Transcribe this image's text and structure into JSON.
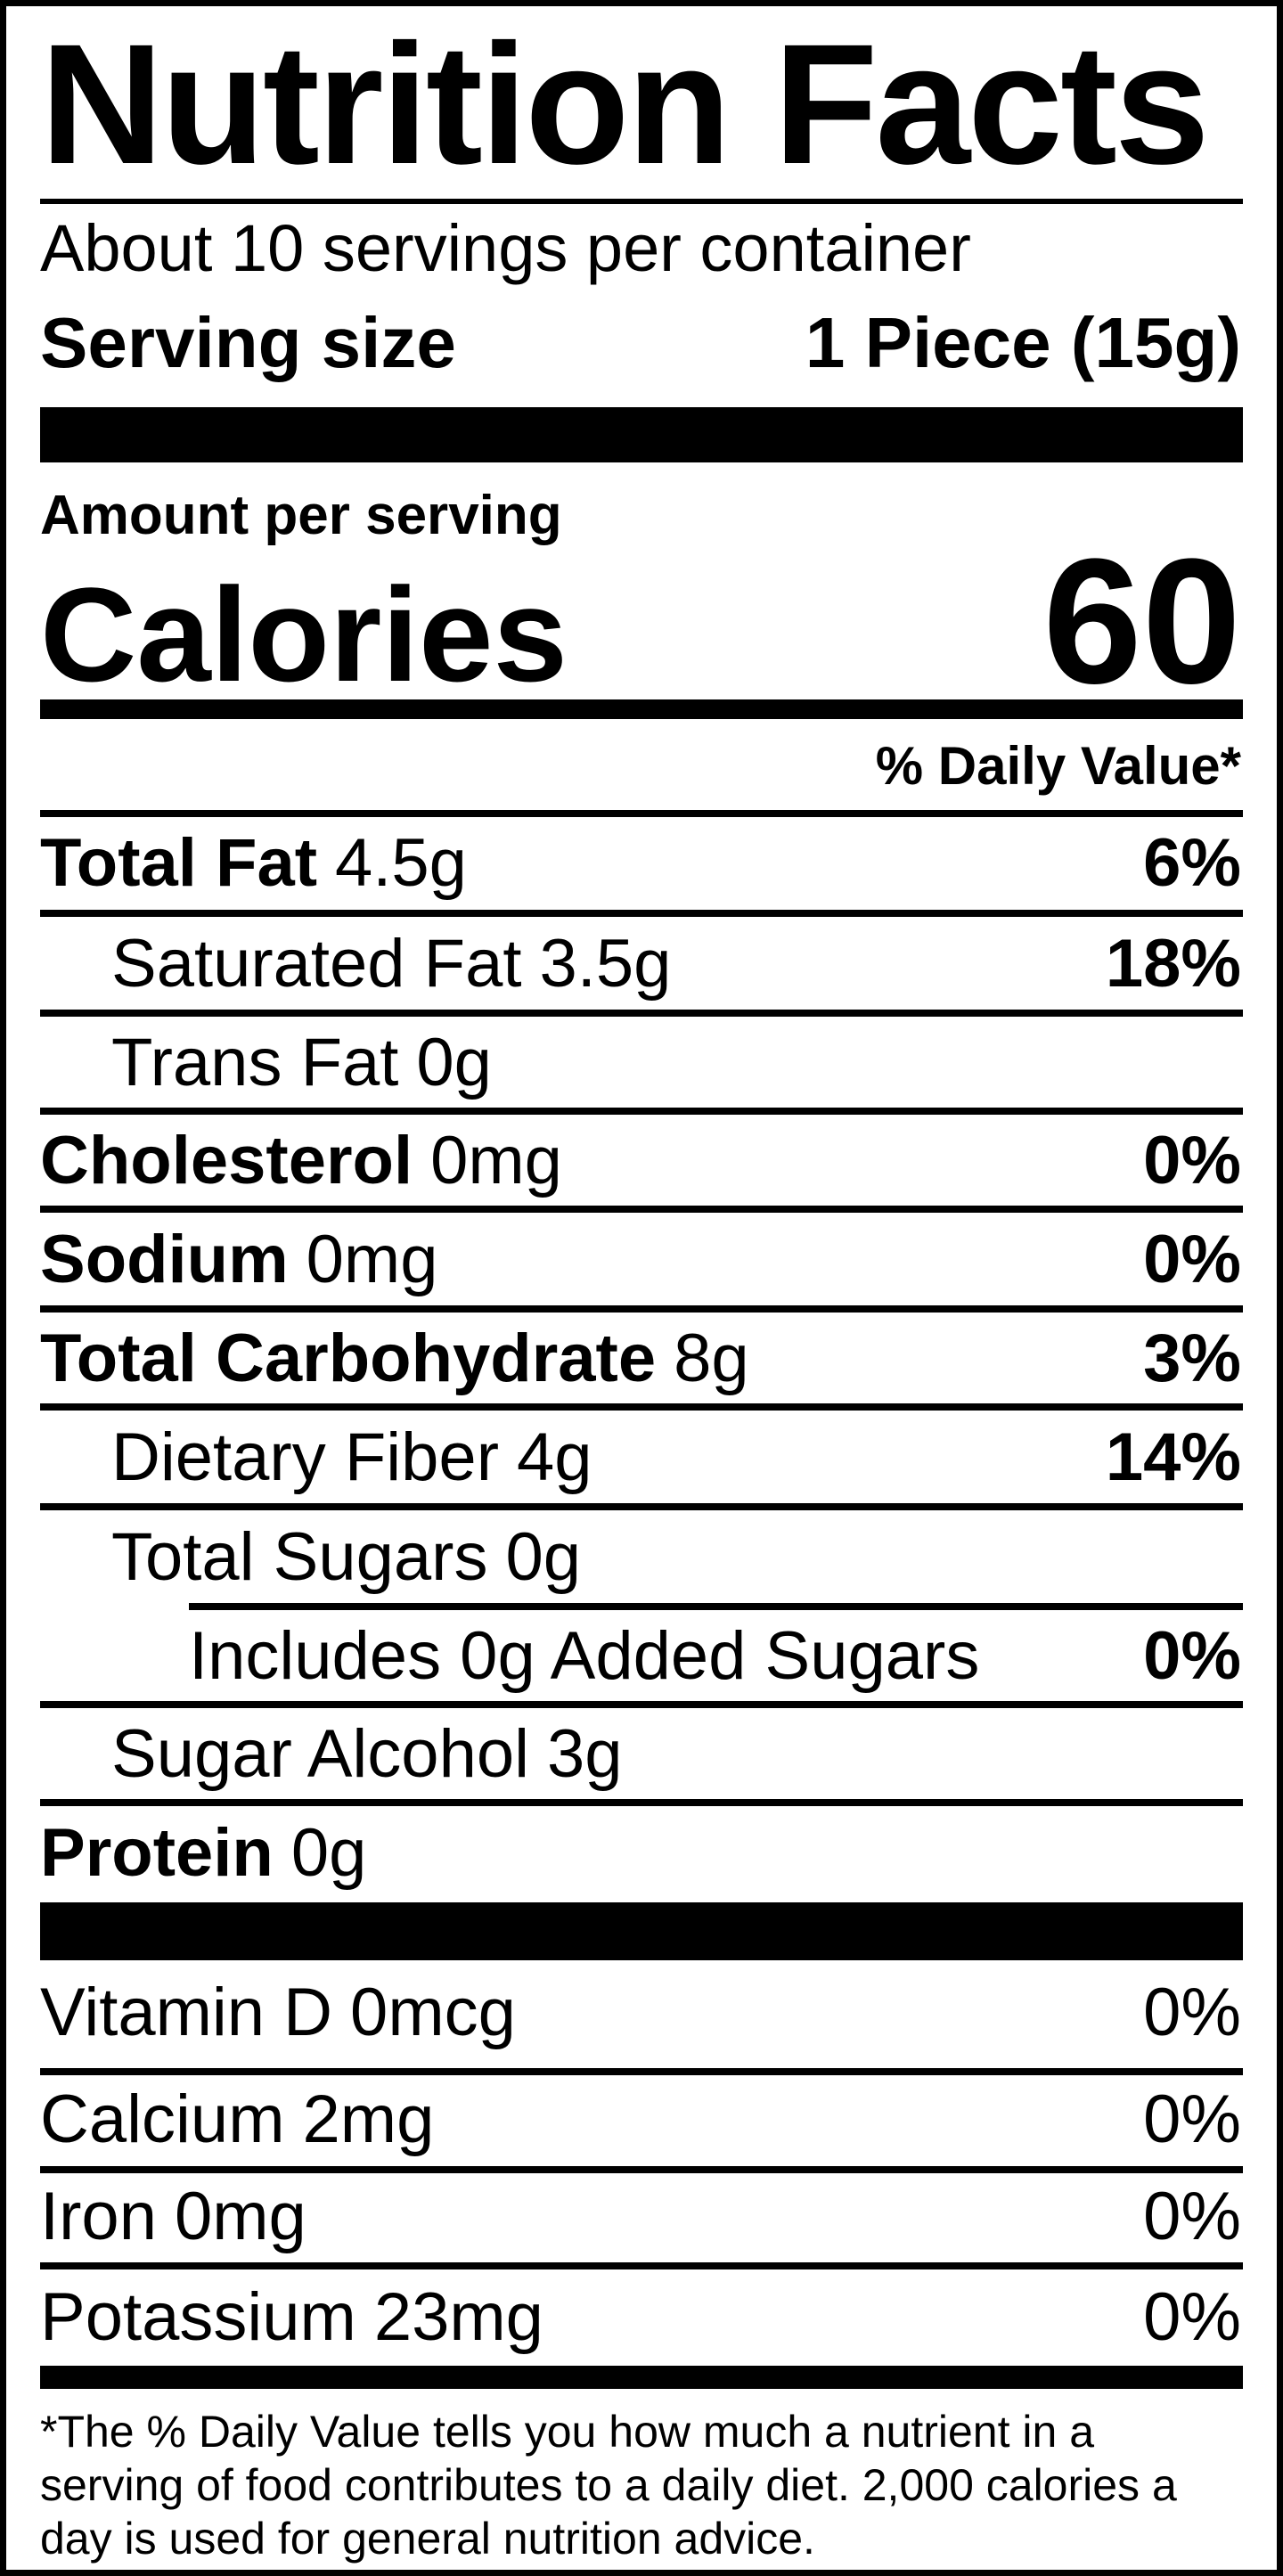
{
  "label": {
    "title": "Nutrition Facts",
    "serving_info": {
      "servings_per_container": "About 10 servings per container",
      "serving_size_label": "Serving size",
      "serving_size_value": "1 Piece (15g)"
    },
    "calories": {
      "amount_per_serving_label": "Amount per serving",
      "calories_label": "Calories",
      "calories_value": "60"
    },
    "daily_value_header": "% Daily Value*",
    "nutrients": [
      {
        "name": "Total Fat",
        "amount": "4.5g",
        "dv": "6%"
      },
      {
        "name": "Saturated Fat",
        "amount": "3.5g",
        "dv": "18%"
      },
      {
        "name": "Trans Fat",
        "amount": "0g",
        "dv": ""
      },
      {
        "name": "Cholesterol",
        "amount": "0mg",
        "dv": "0%"
      },
      {
        "name": "Sodium",
        "amount": "0mg",
        "dv": "0%"
      },
      {
        "name": "Total Carbohydrate",
        "amount": "8g",
        "dv": "3%"
      },
      {
        "name": "Dietary Fiber",
        "amount": "4g",
        "dv": "14%"
      },
      {
        "name": "Total Sugars",
        "amount": "0g",
        "dv": ""
      },
      {
        "name": "Includes 0g Added Sugars",
        "amount": "",
        "dv": "0%"
      },
      {
        "name": "Sugar Alcohol",
        "amount": "3g",
        "dv": ""
      },
      {
        "name": "Protein",
        "amount": "0g",
        "dv": ""
      },
      {
        "name": "Vitamin D",
        "amount": "0mcg",
        "dv": "0%"
      },
      {
        "name": "Calcium",
        "amount": "2mg",
        "dv": "0%"
      },
      {
        "name": "Iron",
        "amount": "0mg",
        "dv": "0%"
      },
      {
        "name": "Potassium",
        "amount": "23mg",
        "dv": "0%"
      }
    ],
    "footnote": {
      "lines": [
        "*The % Daily Value tells you how much a nutrient in a",
        "serving of food contributes to a daily diet. 2,000 calories a",
        "day is used for general nutrition advice."
      ]
    },
    "colors": {
      "text": "#000000",
      "background": "#ffffff"
    }
  }
}
